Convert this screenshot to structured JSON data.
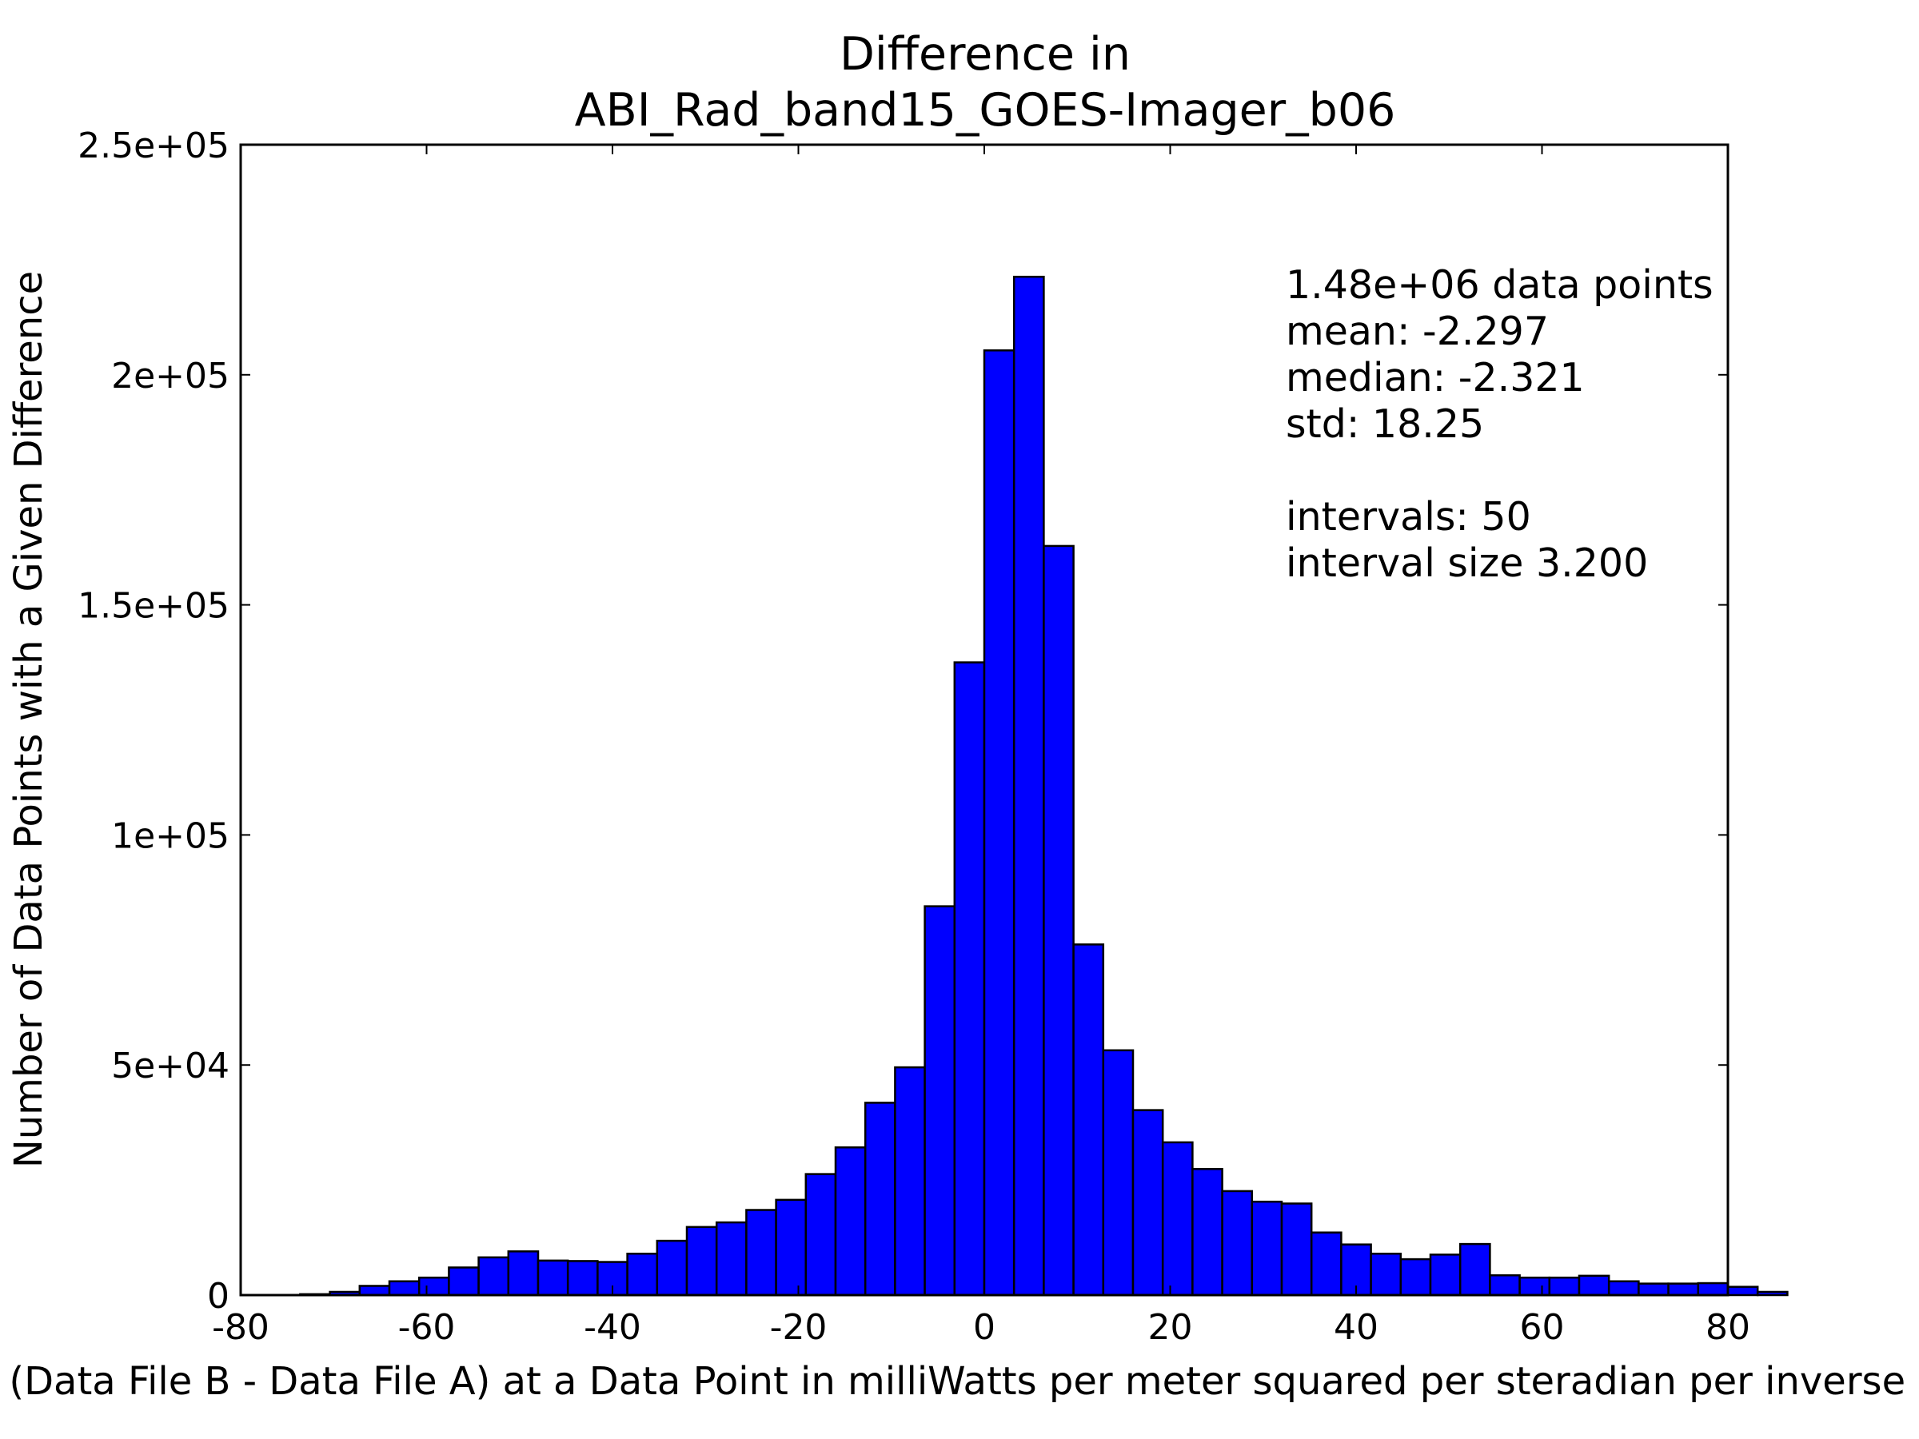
{
  "chart_data": {
    "type": "bar",
    "title": [
      "Difference in",
      "ABI_Rad_band15_GOES-Imager_b06"
    ],
    "xlabel": "Value of (Data File B - Data File A) at a Data Point in milliWatts per meter squared per steradian per inverse centimeter",
    "ylabel": "Number of Data Points with a Given Difference",
    "xlim": [
      -80,
      80
    ],
    "ylim": [
      0,
      250000
    ],
    "x_ticks": [
      -80,
      -60,
      -40,
      -20,
      0,
      20,
      40,
      60,
      80
    ],
    "x_tick_labels": [
      "-80",
      "-60",
      "-40",
      "-20",
      "0",
      "20",
      "40",
      "60",
      "80"
    ],
    "y_ticks": [
      0,
      50000,
      100000,
      150000,
      200000,
      250000
    ],
    "y_tick_labels": [
      "0",
      "5e+04",
      "1e+05",
      "1.5e+05",
      "2e+05",
      "2.5e+05"
    ],
    "bin_start": -73.6,
    "bin_width": 3.2,
    "values": [
      200,
      700,
      2000,
      3000,
      3800,
      6000,
      8200,
      9500,
      7500,
      7400,
      7200,
      9000,
      11800,
      14800,
      15800,
      18500,
      20700,
      26300,
      32100,
      41800,
      49500,
      84500,
      137500,
      205300,
      221300,
      162800,
      76200,
      53200,
      40200,
      33200,
      27400,
      22600,
      20300,
      19900,
      13600,
      11000,
      9000,
      7800,
      8800,
      11100,
      4300,
      3800,
      3800,
      4200,
      3000,
      2500,
      2500,
      2600,
      1800,
      700
    ],
    "bar_color": "#0000ff",
    "grid": false,
    "annotation": [
      "1.48e+06 data points",
      "mean: -2.297",
      "median: -2.321",
      "std: 18.25",
      "",
      "intervals: 50",
      "interval size 3.200"
    ]
  }
}
